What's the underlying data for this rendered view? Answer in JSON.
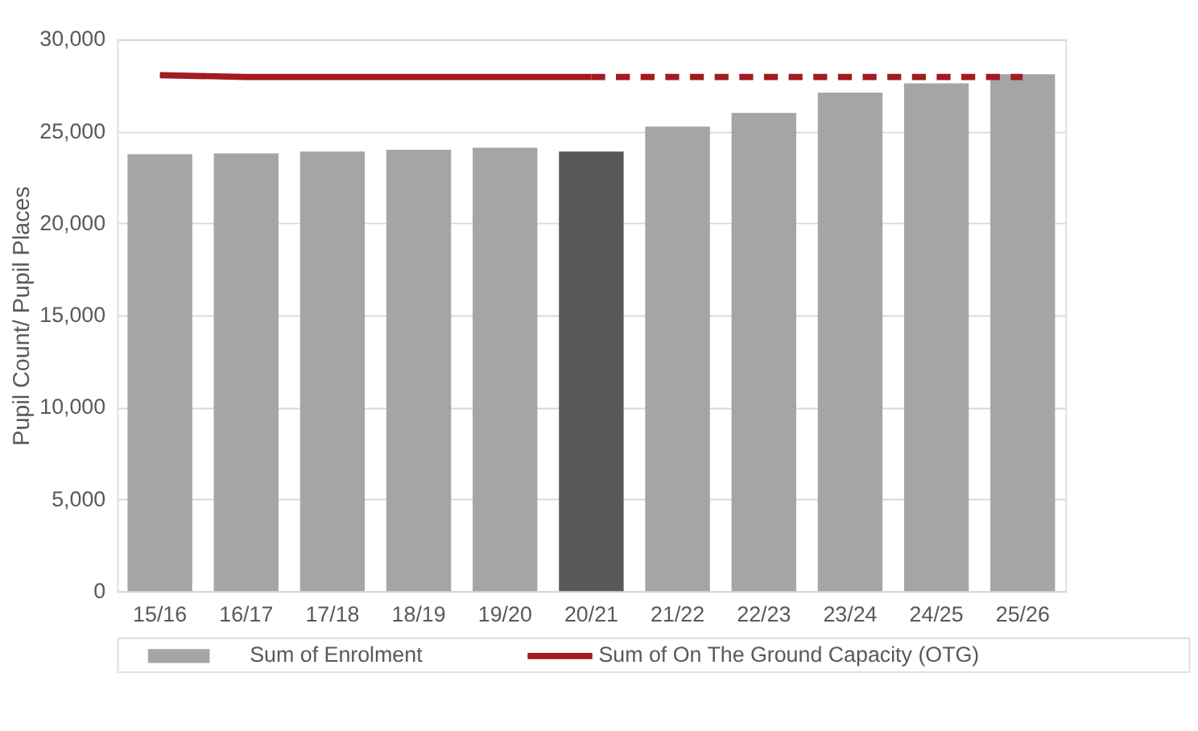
{
  "chart_data": {
    "type": "bar",
    "ylabel": "Pupil Count/ Pupil Places",
    "categories": [
      "15/16",
      "16/17",
      "17/18",
      "18/19",
      "19/20",
      "20/21",
      "21/22",
      "22/23",
      "23/24",
      "24/25",
      "25/26"
    ],
    "series": [
      {
        "name": "Sum of Enrolment",
        "color": "#a5a5a5",
        "colors": [
          "#a5a5a5",
          "#a5a5a5",
          "#a5a5a5",
          "#a5a5a5",
          "#a5a5a5",
          "#595959",
          "#a5a5a5",
          "#a5a5a5",
          "#a5a5a5",
          "#a5a5a5",
          "#a5a5a5"
        ],
        "values": [
          23750,
          23800,
          23900,
          24000,
          24100,
          23900,
          25250,
          26000,
          27100,
          27600,
          28100
        ]
      },
      {
        "name": "Sum of On The Ground Capacity (OTG)",
        "type": "line",
        "color": "#a31a1f",
        "line_style": "solid",
        "values": [
          28050,
          27950,
          27950,
          27950,
          27950,
          27950,
          null,
          null,
          null,
          null,
          null
        ]
      },
      {
        "type": "line",
        "color": "#a31a1f",
        "line_style": "dashed",
        "values": [
          null,
          null,
          null,
          null,
          null,
          27950,
          27950,
          27950,
          27950,
          27950,
          27950
        ]
      }
    ],
    "ylim": [
      0,
      30000
    ],
    "yticks": [
      {
        "value": 0,
        "label": "0"
      },
      {
        "value": 5000,
        "label": "5,000"
      },
      {
        "value": 10000,
        "label": "10,000"
      },
      {
        "value": 15000,
        "label": "15,000"
      },
      {
        "value": 20000,
        "label": "20,000"
      },
      {
        "value": 25000,
        "label": "25,000"
      },
      {
        "value": 30000,
        "label": "30,000"
      }
    ],
    "grid": "y",
    "legend": "bottom"
  }
}
